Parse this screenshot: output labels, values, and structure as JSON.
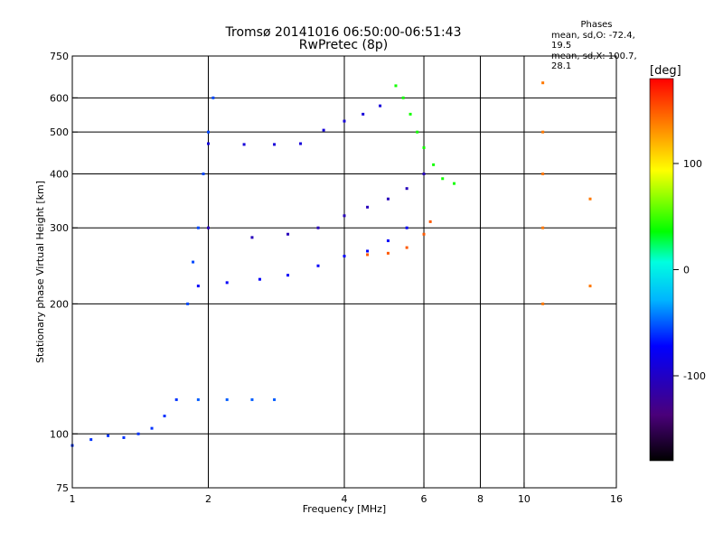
{
  "header": {
    "title": "Tromsø 20141016 06:50:00-06:51:43",
    "subtitle": "RwPretec (8p)"
  },
  "stats": {
    "heading": "Phases",
    "line_o": "mean, sd,O: -72.4, 19.5",
    "line_x": "mean, sd,X: 100.7, 28.1"
  },
  "chart_data": {
    "type": "scatter",
    "xlabel": "Frequency [MHz]",
    "ylabel": "Stationary phase Virtual Height [km]",
    "x_scale": "log",
    "y_scale": "log",
    "xlim": [
      1,
      16
    ],
    "ylim": [
      75,
      750
    ],
    "x_ticks": [
      1,
      2,
      4,
      6,
      8,
      10,
      16
    ],
    "x_gridlines": [
      2,
      4,
      6,
      8,
      10
    ],
    "y_ticks": [
      75,
      100,
      200,
      300,
      400,
      500,
      600,
      750
    ],
    "y_gridlines": [
      100,
      200,
      300,
      400,
      500,
      600
    ],
    "grid": true,
    "colorbar": {
      "label": "[deg]",
      "range": [
        -180,
        180
      ],
      "ticks": [
        100,
        0,
        -100
      ],
      "colors": [
        "#000000",
        "#4a007a",
        "#0000ff",
        "#00b4ff",
        "#00ffe0",
        "#00ff00",
        "#ffff00",
        "#ff8000",
        "#ff0000"
      ]
    },
    "series": [
      {
        "x": [
          1.0,
          1.1,
          1.2,
          1.3,
          1.4,
          1.5,
          1.6,
          1.7
        ],
        "y": [
          94,
          97,
          99,
          98,
          100,
          103,
          110,
          120
        ],
        "c": -60
      },
      {
        "x": [
          1.8,
          1.85,
          1.9,
          1.95,
          2.0,
          2.05
        ],
        "y": [
          200,
          250,
          300,
          400,
          500,
          600
        ],
        "c": -55
      },
      {
        "x": [
          1.9,
          2.2,
          2.6,
          3.0,
          3.5,
          4.0,
          4.5,
          5.0,
          5.5
        ],
        "y": [
          220,
          224,
          228,
          233,
          245,
          258,
          265,
          280,
          300
        ],
        "c": -75
      },
      {
        "x": [
          2.0,
          2.5,
          3.0,
          3.5,
          4.0,
          4.5,
          5.0,
          5.5,
          6.0
        ],
        "y": [
          300,
          285,
          290,
          300,
          320,
          335,
          350,
          370,
          400
        ],
        "c": -105
      },
      {
        "x": [
          2.0,
          2.4,
          2.8,
          3.2,
          3.6,
          4.0,
          4.4,
          4.8
        ],
        "y": [
          470,
          468,
          468,
          470,
          505,
          530,
          550,
          575
        ],
        "c": -90
      },
      {
        "x": [
          5.2,
          5.4,
          5.6,
          5.8,
          6.0,
          6.3,
          6.6,
          7.0
        ],
        "y": [
          640,
          600,
          550,
          500,
          460,
          420,
          390,
          380
        ],
        "c": 40
      },
      {
        "x": [
          4.5,
          5.0,
          5.5,
          6.0,
          6.2
        ],
        "y": [
          260,
          262,
          270,
          290,
          310
        ],
        "c": 150
      },
      {
        "x": [
          1.9,
          2.2,
          2.5,
          2.8
        ],
        "y": [
          120,
          120,
          120,
          120
        ],
        "c": -50
      },
      {
        "x": [
          11.0,
          11.0,
          11.0,
          11.0,
          11.0,
          14.0,
          14.0
        ],
        "y": [
          200,
          300,
          400,
          500,
          650,
          220,
          350
        ],
        "c": 140
      }
    ]
  }
}
